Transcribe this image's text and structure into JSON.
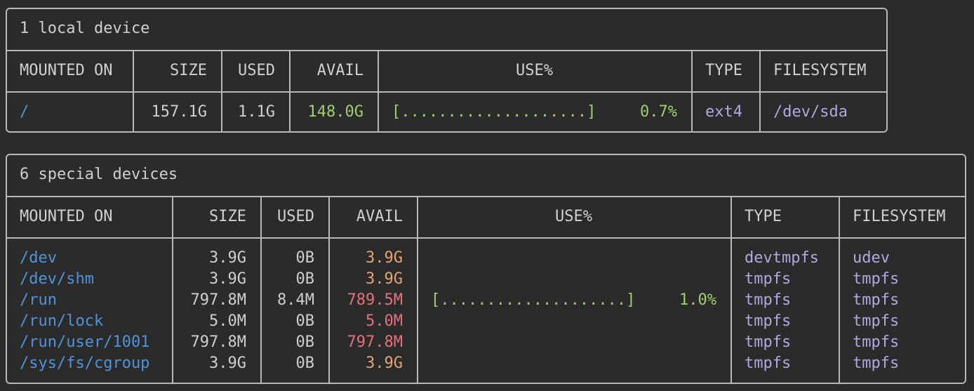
{
  "tables": [
    {
      "title": "1 local device",
      "headers": [
        "MOUNTED ON",
        "SIZE",
        "USED",
        "AVAIL",
        "USE%",
        "TYPE",
        "FILESYSTEM"
      ],
      "rows": [
        {
          "mounted_on": "/",
          "size": "157.1G",
          "used": "1.1G",
          "avail": "148.0G",
          "avail_color": "#9fcf6e",
          "use_bar": "[....................]",
          "use_percent": "0.7%",
          "type": "ext4",
          "filesystem": "/dev/sda"
        }
      ]
    },
    {
      "title": "6 special devices",
      "headers": [
        "MOUNTED ON",
        "SIZE",
        "USED",
        "AVAIL",
        "USE%",
        "TYPE",
        "FILESYSTEM"
      ],
      "rows": [
        {
          "mounted_on": "/dev",
          "size": "3.9G",
          "used": "0B",
          "avail": "3.9G",
          "avail_color": "#e2a572",
          "use_bar": null,
          "use_percent": null,
          "type": "devtmpfs",
          "filesystem": "udev"
        },
        {
          "mounted_on": "/dev/shm",
          "size": "3.9G",
          "used": "0B",
          "avail": "3.9G",
          "avail_color": "#e2a572",
          "use_bar": null,
          "use_percent": null,
          "type": "tmpfs",
          "filesystem": "tmpfs"
        },
        {
          "mounted_on": "/run",
          "size": "797.8M",
          "used": "8.4M",
          "avail": "789.5M",
          "avail_color": "#e4707a",
          "use_bar": "[....................]",
          "use_percent": "1.0%",
          "type": "tmpfs",
          "filesystem": "tmpfs"
        },
        {
          "mounted_on": "/run/lock",
          "size": "5.0M",
          "used": "0B",
          "avail": "5.0M",
          "avail_color": "#e4707a",
          "use_bar": null,
          "use_percent": null,
          "type": "tmpfs",
          "filesystem": "tmpfs"
        },
        {
          "mounted_on": "/run/user/1001",
          "size": "797.8M",
          "used": "0B",
          "avail": "797.8M",
          "avail_color": "#e4707a",
          "use_bar": null,
          "use_percent": null,
          "type": "tmpfs",
          "filesystem": "tmpfs"
        },
        {
          "mounted_on": "/sys/fs/cgroup",
          "size": "3.9G",
          "used": "0B",
          "avail": "3.9G",
          "avail_color": "#e2a572",
          "use_bar": null,
          "use_percent": null,
          "type": "tmpfs",
          "filesystem": "tmpfs"
        }
      ]
    }
  ]
}
